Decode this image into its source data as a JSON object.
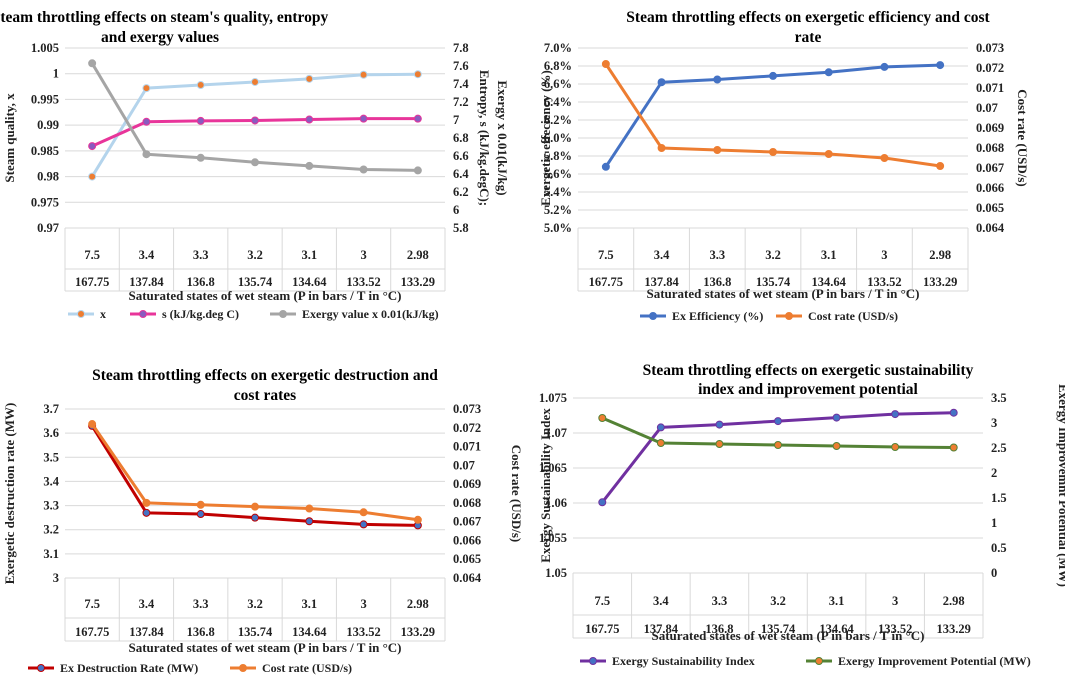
{
  "chart_data": [
    {
      "type": "line",
      "title_lines": [
        "Steam throttling effects on steam's quality, entropy",
        "and exergy values"
      ],
      "categories_top": [
        "7.5",
        "3.4",
        "3.3",
        "3.2",
        "3.1",
        "3",
        "2.98"
      ],
      "categories_bottom": [
        "167.75",
        "137.84",
        "136.8",
        "135.74",
        "134.64",
        "133.52",
        "133.29"
      ],
      "xlabel": "Saturated states of wet steam (P in bars / T in °C)",
      "ylabel": "Steam quality, x",
      "y2label_lines": [
        "Entropy, s (kJ/kg.degC);",
        "Exergy x 0.01(kJ/kg)"
      ],
      "ylim": [
        0.97,
        1.005
      ],
      "yticks": [
        "0.97",
        "0.975",
        "0.98",
        "0.985",
        "0.99",
        "0.995",
        "1",
        "1.005"
      ],
      "y2lim": [
        5.8,
        7.8
      ],
      "y2ticks": [
        "5.8",
        "6",
        "6.2",
        "6.4",
        "6.6",
        "6.8",
        "7",
        "7.2",
        "7.4",
        "7.6",
        "7.8"
      ],
      "series": [
        {
          "name": "x",
          "axis": "left",
          "color": "#b4d4ec",
          "marker": "#ed7d31",
          "values": [
            0.98,
            0.9972,
            0.9978,
            0.9984,
            0.999,
            0.9998,
            0.9999
          ]
        },
        {
          "name": "s (kJ/kg.deg C)",
          "axis": "right",
          "color": "#e8359a",
          "marker": "#8a5bbf",
          "values": [
            6.71,
            6.98,
            6.99,
            6.995,
            7.005,
            7.015,
            7.015
          ]
        },
        {
          "name": "Exergy value x 0.01(kJ/kg)",
          "axis": "right",
          "color": "#a5a5a5",
          "marker": "#a5a5a5",
          "values": [
            7.63,
            6.62,
            6.58,
            6.53,
            6.49,
            6.45,
            6.44
          ]
        }
      ]
    },
    {
      "type": "line",
      "title_lines": [
        "Steam throttling effects on exergetic efficiency and cost",
        "rate"
      ],
      "categories_top": [
        "7.5",
        "3.4",
        "3.3",
        "3.2",
        "3.1",
        "3",
        "2.98"
      ],
      "categories_bottom": [
        "167.75",
        "137.84",
        "136.8",
        "135.74",
        "134.64",
        "133.52",
        "133.29"
      ],
      "xlabel": "Saturated states of wet steam (P in bars / T in °C)",
      "ylabel": "Exergetic effeciency (%)",
      "y2label_lines": [
        "Cost rate (USD/s)"
      ],
      "ylim": [
        5.0,
        7.0
      ],
      "yticks": [
        "5.0%",
        "5.2%",
        "5.4%",
        "5.6%",
        "5.8%",
        "6.0%",
        "6.2%",
        "6.4%",
        "6.6%",
        "6.8%",
        "7.0%"
      ],
      "y2lim": [
        0.064,
        0.073
      ],
      "y2ticks": [
        "0.064",
        "0.065",
        "0.066",
        "0.067",
        "0.068",
        "0.069",
        "0.07",
        "0.071",
        "0.072",
        "0.073"
      ],
      "series": [
        {
          "name": "Ex Efficiency (%)",
          "axis": "left",
          "color": "#4472c4",
          "marker": "#4472c4",
          "values": [
            5.68,
            6.62,
            6.65,
            6.69,
            6.73,
            6.79,
            6.81
          ]
        },
        {
          "name": "Cost rate (USD/s)",
          "axis": "right",
          "color": "#ed7d31",
          "marker": "#ed7d31",
          "values": [
            0.0722,
            0.068,
            0.0679,
            0.0678,
            0.0677,
            0.0675,
            0.0671
          ]
        }
      ]
    },
    {
      "type": "line",
      "title_lines": [
        "Steam throttling effects on exergetic destruction and",
        "cost rates"
      ],
      "categories_top": [
        "7.5",
        "3.4",
        "3.3",
        "3.2",
        "3.1",
        "3",
        "2.98"
      ],
      "categories_bottom": [
        "167.75",
        "137.84",
        "136.8",
        "135.74",
        "134.64",
        "133.52",
        "133.29"
      ],
      "xlabel": "Saturated states of wet steam (P in bars / T in °C)",
      "ylabel": "Exergetic destruction rate (MW)",
      "y2label_lines": [
        "Cost rate (USD/s)"
      ],
      "ylim": [
        3.0,
        3.7
      ],
      "yticks": [
        "3",
        "3.1",
        "3.2",
        "3.3",
        "3.4",
        "3.5",
        "3.6",
        "3.7"
      ],
      "y2lim": [
        0.064,
        0.073
      ],
      "y2ticks": [
        "0.064",
        "0.065",
        "0.066",
        "0.067",
        "0.068",
        "0.069",
        "0.07",
        "0.071",
        "0.072",
        "0.073"
      ],
      "series": [
        {
          "name": "Ex Destruction Rate (MW)",
          "axis": "left",
          "color": "#c00000",
          "marker": "#4472c4",
          "values": [
            3.63,
            3.27,
            3.265,
            3.25,
            3.235,
            3.222,
            3.218
          ]
        },
        {
          "name": "Cost rate (USD/s)",
          "axis": "right",
          "color": "#ed7d31",
          "marker": "#ed7d31",
          "values": [
            0.0722,
            0.068,
            0.0679,
            0.0678,
            0.0677,
            0.0675,
            0.0671
          ]
        }
      ]
    },
    {
      "type": "line",
      "title_lines": [
        "Steam throttling effects on exergetic sustainability",
        "index and improvement potential"
      ],
      "categories_top": [
        "7.5",
        "3.4",
        "3.3",
        "3.2",
        "3.1",
        "3",
        "2.98"
      ],
      "categories_bottom": [
        "167.75",
        "137.84",
        "136.8",
        "135.74",
        "134.64",
        "133.52",
        "133.29"
      ],
      "xlabel": "Saturated states of wet steam (P in bars / T in °C)",
      "ylabel": "Exergy Sustainability Index",
      "y2label_lines": [
        "Exergy Improvemnt Potential (MW)"
      ],
      "ylim": [
        1.05,
        1.075
      ],
      "yticks": [
        "1.05",
        "1.055",
        "1.06",
        "1.065",
        "1.07",
        "1.075"
      ],
      "y2lim": [
        0,
        3.5
      ],
      "y2ticks": [
        "0",
        "0.5",
        "1",
        "1.5",
        "2",
        "2.5",
        "3",
        "3.5"
      ],
      "series": [
        {
          "name": "Exergy Sustainability Index",
          "axis": "left",
          "color": "#7030a0",
          "marker": "#4472c4",
          "values": [
            1.0601,
            1.0708,
            1.0712,
            1.0717,
            1.0722,
            1.0727,
            1.0729
          ]
        },
        {
          "name": "Exergy Improvement Potential (MW)",
          "axis": "right",
          "color": "#548235",
          "marker": "#ed7d31",
          "values": [
            3.1,
            2.6,
            2.58,
            2.56,
            2.54,
            2.52,
            2.51
          ]
        }
      ]
    }
  ]
}
